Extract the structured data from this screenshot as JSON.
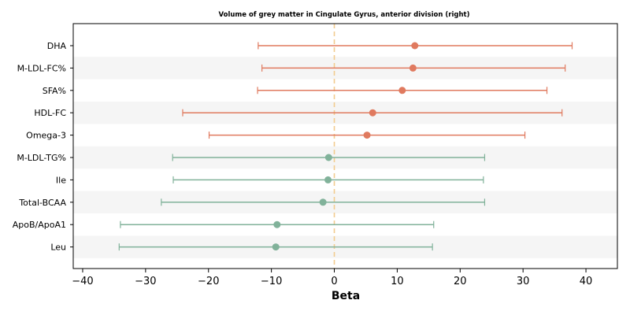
{
  "chart_data": {
    "type": "forest",
    "title": "Volume of grey matter in Cingulate Gyrus, anterior division (right)",
    "xlabel": "Beta",
    "ylabel": "",
    "xlim": [
      -41.5,
      45
    ],
    "xticks": [
      -40,
      -30,
      -20,
      -10,
      0,
      10,
      20,
      30,
      40
    ],
    "xtick_labels": [
      "−40",
      "−30",
      "−20",
      "−10",
      "0",
      "10",
      "20",
      "30",
      "40"
    ],
    "reference_line": 0,
    "grid": false,
    "colors": {
      "positive": "#e07a5f",
      "negative": "#81b29a",
      "reference": "#f2cc8f",
      "band": "#f5f5f5"
    },
    "rows": [
      {
        "label": "DHA",
        "beta": 12.8,
        "ci_low": -12.1,
        "ci_high": 37.8,
        "group": "positive"
      },
      {
        "label": "M-LDL-FC%",
        "beta": 12.5,
        "ci_low": -11.5,
        "ci_high": 36.7,
        "group": "positive"
      },
      {
        "label": "SFA%",
        "beta": 10.8,
        "ci_low": -12.2,
        "ci_high": 33.8,
        "group": "positive"
      },
      {
        "label": "HDL-FC",
        "beta": 6.1,
        "ci_low": -24.1,
        "ci_high": 36.2,
        "group": "positive"
      },
      {
        "label": "Omega-3",
        "beta": 5.2,
        "ci_low": -19.9,
        "ci_high": 30.3,
        "group": "positive"
      },
      {
        "label": "M-LDL-TG%",
        "beta": -0.9,
        "ci_low": -25.7,
        "ci_high": 23.9,
        "group": "negative"
      },
      {
        "label": "Ile",
        "beta": -1.0,
        "ci_low": -25.6,
        "ci_high": 23.7,
        "group": "negative"
      },
      {
        "label": "Total-BCAA",
        "beta": -1.8,
        "ci_low": -27.5,
        "ci_high": 23.9,
        "group": "negative"
      },
      {
        "label": "ApoB/ApoA1",
        "beta": -9.1,
        "ci_low": -34.0,
        "ci_high": 15.8,
        "group": "negative"
      },
      {
        "label": "Leu",
        "beta": -9.3,
        "ci_low": -34.2,
        "ci_high": 15.6,
        "group": "negative"
      }
    ]
  }
}
